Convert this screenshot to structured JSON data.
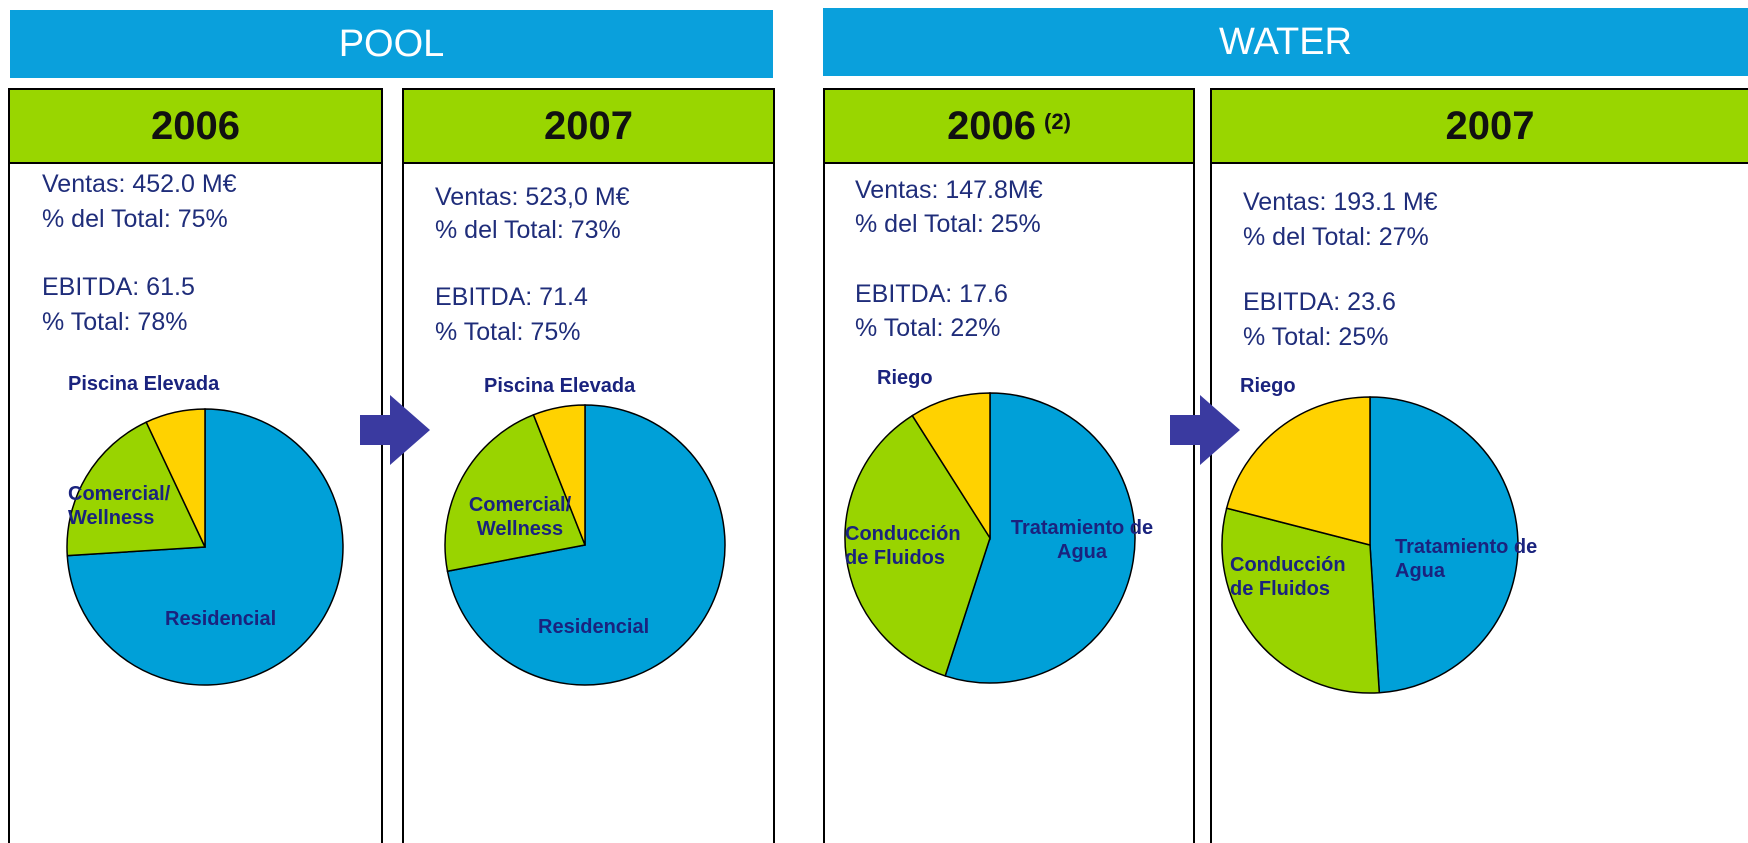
{
  "sections": [
    {
      "title": "POOL"
    },
    {
      "title": "WATER"
    }
  ],
  "chart_data": [
    {
      "type": "pie",
      "title": "2006",
      "text": [
        "Ventas: 452.0 M€",
        "% del Total: 75%",
        "EBITDA: 61.5",
        "% Total: 78%"
      ],
      "categories": [
        "Residencial",
        "Comercial/ Wellness",
        "Piscina Elevada"
      ],
      "values": [
        74,
        19,
        7
      ],
      "colors": [
        "#00a0d8",
        "#99d400",
        "#ffd200"
      ]
    },
    {
      "type": "pie",
      "title": "2007",
      "text": [
        "Ventas: 523,0 M€",
        "% del Total: 73%",
        "EBITDA: 71.4",
        "% Total: 75%"
      ],
      "categories": [
        "Residencial",
        "Comercial/ Wellness",
        "Piscina Elevada"
      ],
      "values": [
        72,
        22,
        6
      ],
      "colors": [
        "#00a0d8",
        "#99d400",
        "#ffd200"
      ]
    },
    {
      "type": "pie",
      "title": "2006",
      "note": "(2)",
      "text": [
        "Ventas: 147.8M€",
        "% del Total: 25%",
        "EBITDA: 17.6",
        "% Total: 22%"
      ],
      "categories": [
        "Tratamiento de Agua",
        "Conducción de Fluidos",
        "Riego"
      ],
      "values": [
        55,
        36,
        9
      ],
      "colors": [
        "#00a0d8",
        "#99d400",
        "#ffd200"
      ]
    },
    {
      "type": "pie",
      "title": "2007",
      "text": [
        "Ventas: 193.1 M€",
        "% del Total: 27%",
        "EBITDA: 23.6",
        "% Total: 25%"
      ],
      "categories": [
        "Tratamiento de Agua",
        "Conducción de Fluidos",
        "Riego"
      ],
      "values": [
        49,
        30,
        21
      ],
      "colors": [
        "#00a0d8",
        "#99d400",
        "#ffd200"
      ]
    }
  ]
}
